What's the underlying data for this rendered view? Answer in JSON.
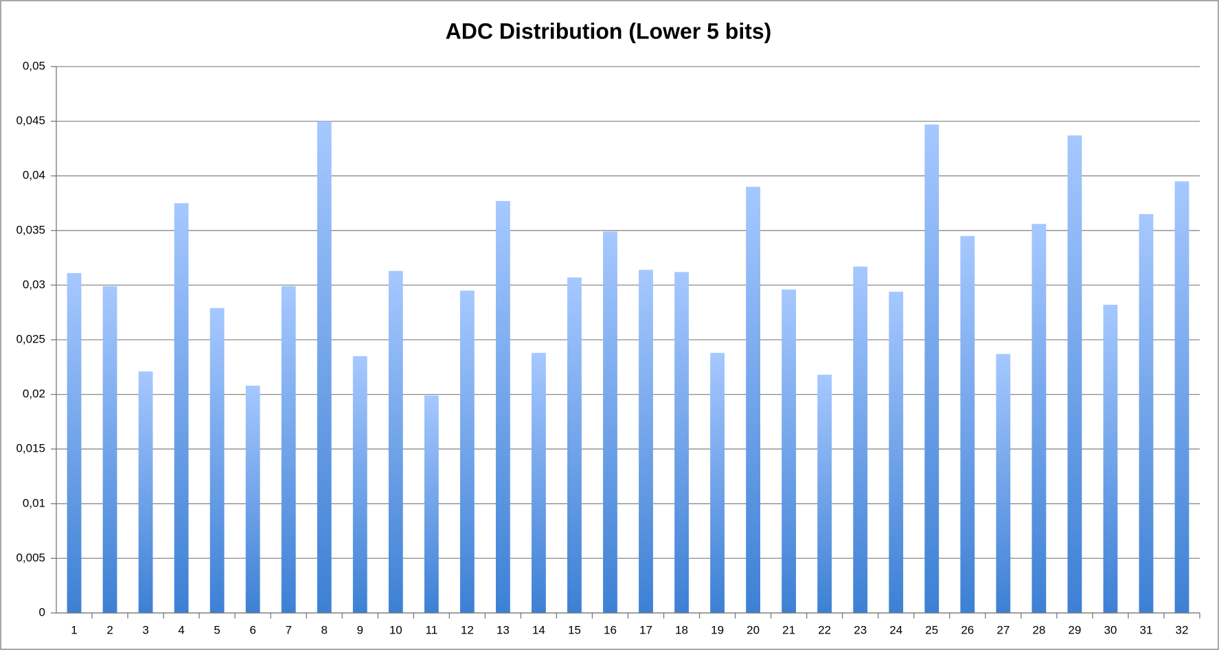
{
  "chart_data": {
    "type": "bar",
    "title": "ADC Distribution (Lower 5 bits)",
    "categories": [
      "1",
      "2",
      "3",
      "4",
      "5",
      "6",
      "7",
      "8",
      "9",
      "10",
      "11",
      "12",
      "13",
      "14",
      "15",
      "16",
      "17",
      "18",
      "19",
      "20",
      "21",
      "22",
      "23",
      "24",
      "25",
      "26",
      "27",
      "28",
      "29",
      "30",
      "31",
      "32"
    ],
    "values": [
      0.0311,
      0.0299,
      0.0221,
      0.0375,
      0.0279,
      0.0208,
      0.0299,
      0.045,
      0.0235,
      0.0313,
      0.0199,
      0.0295,
      0.0377,
      0.0238,
      0.0307,
      0.0349,
      0.0314,
      0.0312,
      0.0238,
      0.039,
      0.0296,
      0.0218,
      0.0317,
      0.0294,
      0.0447,
      0.0345,
      0.0237,
      0.0356,
      0.0437,
      0.0282,
      0.0365,
      0.0395
    ],
    "color": "#3d80d4",
    "ylim": [
      0,
      0.05
    ],
    "yticks": [
      0,
      {
        "value": 0.005,
        "label": "0,005"
      },
      {
        "value": 0.01,
        "label": "0,01"
      },
      {
        "value": 0.015,
        "label": "0,015"
      },
      {
        "value": 0.02,
        "label": "0,02"
      },
      {
        "value": 0.025,
        "label": "0,025"
      },
      {
        "value": 0.03,
        "label": "0,03"
      },
      {
        "value": 0.035,
        "label": "0,035"
      },
      {
        "value": 0.04,
        "label": "0,04"
      },
      {
        "value": 0.045,
        "label": "0,045"
      },
      {
        "value": 0.05,
        "label": "0,05"
      }
    ],
    "grid": true
  }
}
